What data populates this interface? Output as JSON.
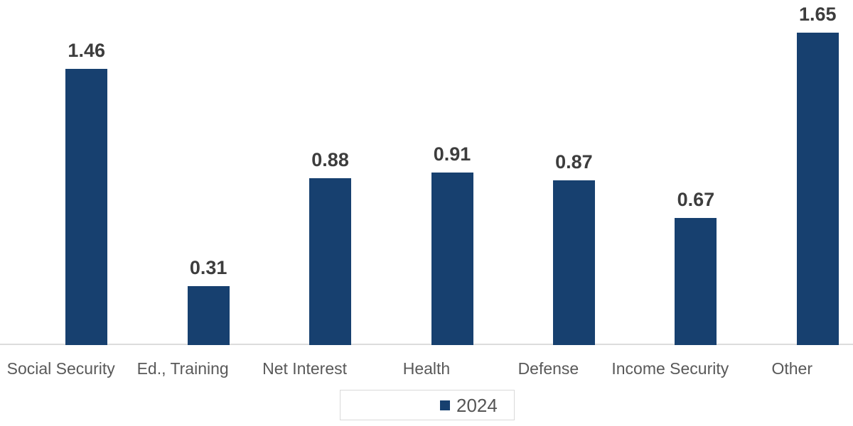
{
  "chart_data": {
    "type": "bar",
    "categories": [
      "Social Security",
      "Ed., Training",
      "Net Interest",
      "Health",
      "Defense",
      "Income Security",
      "Other"
    ],
    "series": [
      {
        "name": "2024",
        "values": [
          1.46,
          0.31,
          0.88,
          0.91,
          0.87,
          0.67,
          1.65
        ]
      }
    ],
    "title": "",
    "xlabel": "",
    "ylabel": "",
    "ylim": [
      0,
      1.8
    ],
    "grid": false,
    "value_labels_shown": true,
    "value_label_format": "2-decimals",
    "legend_position": "bottom-center",
    "colors": {
      "bar": "#17406F",
      "axis_line": "#DCDCDC",
      "category_label": "#595959",
      "value_label": "#3D3D3D",
      "legend_text": "#555555",
      "legend_border": "#D9D9D9",
      "background": "#FFFFFF"
    }
  }
}
